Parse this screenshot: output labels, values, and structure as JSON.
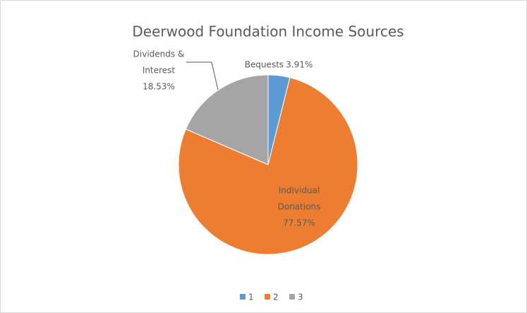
{
  "chart_data": {
    "type": "pie",
    "title": "Deerwood Foundation Income Sources",
    "categories": [
      "Bequests",
      "Individual Donations",
      "Dividends & Interest"
    ],
    "values": [
      3.91,
      77.57,
      18.53
    ],
    "value_labels": [
      "3.91%",
      "77.57%",
      "18.53%"
    ],
    "colors": [
      "#5b9bd5",
      "#ed7d31",
      "#a5a5a5"
    ],
    "legend": [
      "1",
      "2",
      "3"
    ],
    "legend_position": "bottom"
  }
}
